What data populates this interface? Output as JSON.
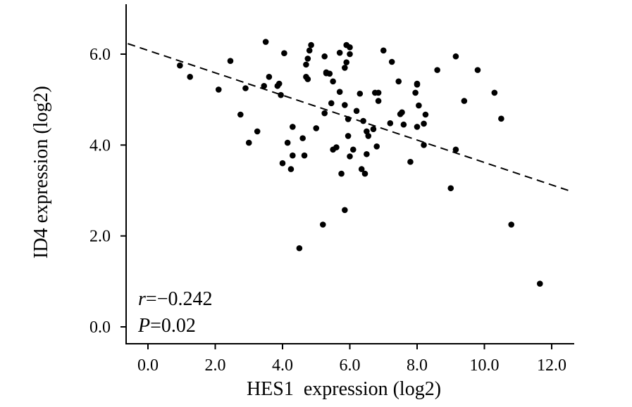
{
  "chart_data": {
    "type": "scatter",
    "title": "",
    "xlabel": "HES1  expression (log2)",
    "ylabel": "ID4 expression (log2)",
    "xlim": [
      -0.6,
      12.6
    ],
    "ylim": [
      -0.35,
      7.1
    ],
    "x_ticks": [
      0,
      2,
      4,
      6,
      8,
      10,
      12
    ],
    "x_tick_labels": [
      "0.0",
      "2.0",
      "4.0",
      "6.0",
      "8.0",
      "10.0",
      "12.0"
    ],
    "y_ticks": [
      0,
      2,
      4,
      6
    ],
    "y_tick_labels": [
      "0.0",
      "2.0",
      "4.0",
      "6.0"
    ],
    "grid": false,
    "trendline": {
      "x": [
        -0.6,
        12.5
      ],
      "y": [
        6.23,
        3.0
      ],
      "style": "dashed"
    },
    "annotations": {
      "r_symbol": "r",
      "r_value": "=−0.242",
      "p_symbol": "P",
      "p_value": "=0.02"
    },
    "series": [
      {
        "points": [
          [
            0.95,
            5.75
          ],
          [
            1.25,
            5.5
          ],
          [
            2.1,
            5.22
          ],
          [
            2.45,
            5.85
          ],
          [
            2.75,
            4.67
          ],
          [
            2.9,
            5.25
          ],
          [
            3.0,
            4.05
          ],
          [
            3.25,
            4.3
          ],
          [
            3.45,
            5.3
          ],
          [
            3.5,
            6.27
          ],
          [
            3.6,
            5.5
          ],
          [
            3.85,
            5.3
          ],
          [
            3.9,
            5.35
          ],
          [
            3.95,
            5.1
          ],
          [
            4.0,
            3.6
          ],
          [
            4.05,
            6.02
          ],
          [
            4.15,
            4.05
          ],
          [
            4.25,
            3.47
          ],
          [
            4.3,
            4.4
          ],
          [
            4.3,
            3.77
          ],
          [
            4.5,
            1.73
          ],
          [
            4.6,
            4.15
          ],
          [
            4.65,
            3.77
          ],
          [
            4.7,
            5.77
          ],
          [
            4.7,
            5.5
          ],
          [
            4.75,
            5.9
          ],
          [
            4.75,
            5.45
          ],
          [
            4.8,
            6.08
          ],
          [
            4.85,
            6.2
          ],
          [
            5.0,
            4.37
          ],
          [
            5.2,
            2.25
          ],
          [
            5.25,
            4.7
          ],
          [
            5.25,
            5.95
          ],
          [
            5.3,
            5.6
          ],
          [
            5.3,
            5.58
          ],
          [
            5.4,
            5.57
          ],
          [
            5.45,
            4.92
          ],
          [
            5.5,
            3.9
          ],
          [
            5.5,
            5.4
          ],
          [
            5.6,
            3.95
          ],
          [
            5.7,
            5.17
          ],
          [
            5.7,
            6.03
          ],
          [
            5.75,
            3.37
          ],
          [
            5.85,
            2.57
          ],
          [
            5.85,
            5.7
          ],
          [
            5.85,
            4.88
          ],
          [
            5.9,
            6.2
          ],
          [
            5.9,
            5.82
          ],
          [
            5.95,
            4.2
          ],
          [
            5.95,
            4.57
          ],
          [
            6.0,
            3.75
          ],
          [
            6.0,
            6.15
          ],
          [
            6.0,
            6.0
          ],
          [
            6.1,
            3.9
          ],
          [
            6.2,
            4.75
          ],
          [
            6.3,
            5.13
          ],
          [
            6.35,
            3.47
          ],
          [
            6.4,
            4.53
          ],
          [
            6.45,
            3.37
          ],
          [
            6.5,
            3.8
          ],
          [
            6.5,
            4.3
          ],
          [
            6.55,
            4.2
          ],
          [
            6.7,
            4.35
          ],
          [
            6.75,
            5.15
          ],
          [
            6.8,
            3.97
          ],
          [
            6.85,
            5.15
          ],
          [
            6.85,
            4.97
          ],
          [
            7.0,
            6.08
          ],
          [
            7.2,
            4.48
          ],
          [
            7.25,
            5.83
          ],
          [
            7.45,
            5.4
          ],
          [
            7.5,
            4.68
          ],
          [
            7.55,
            4.72
          ],
          [
            7.6,
            4.45
          ],
          [
            7.8,
            3.63
          ],
          [
            7.95,
            5.15
          ],
          [
            8.0,
            5.35
          ],
          [
            8.0,
            5.33
          ],
          [
            8.0,
            4.4
          ],
          [
            8.05,
            4.87
          ],
          [
            8.2,
            4.47
          ],
          [
            8.2,
            4.0
          ],
          [
            8.25,
            4.67
          ],
          [
            8.6,
            5.65
          ],
          [
            9.0,
            3.05
          ],
          [
            9.15,
            5.95
          ],
          [
            9.15,
            3.9
          ],
          [
            9.4,
            4.97
          ],
          [
            9.8,
            5.65
          ],
          [
            10.3,
            5.15
          ],
          [
            10.5,
            4.58
          ],
          [
            10.8,
            2.25
          ],
          [
            11.65,
            0.95
          ]
        ]
      }
    ]
  }
}
